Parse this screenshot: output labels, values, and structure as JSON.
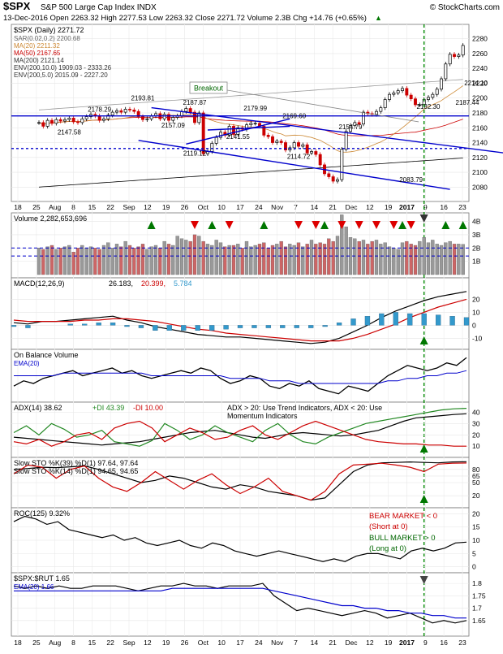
{
  "header": {
    "symbol": "$SPX",
    "name": "S&P 500 Large Cap Index",
    "exchange": "INDX",
    "brand": "© StockCharts.com",
    "date": "13-Dec-2016",
    "open_label": "Open",
    "open": "2263.32",
    "high_label": "High",
    "high": "2277.53",
    "low_label": "Low",
    "low": "2263.32",
    "close_label": "Close",
    "close": "2271.72",
    "volume_label": "Volume",
    "volume": "2.3B",
    "chg_label": "Chg",
    "chg": "+14.76 (+0.65%)",
    "chg_arrow": "▲"
  },
  "colors": {
    "price": "#000000",
    "up": "#000000",
    "down": "#cc0000",
    "channel": "#0000cc",
    "ma20": "#cc8833",
    "ma50": "#cc0000",
    "ma200": "#000000",
    "env": "#999999",
    "sar": "#999999",
    "arrow_up": "#007700",
    "arrow_down": "#dd0000",
    "volume_up": "#999999",
    "volume_down": "#cc6666",
    "macd_hist": "#3399cc",
    "signal": "#cc0000",
    "marker": "#008800",
    "bear": "#cc0000",
    "bull": "#006600"
  },
  "x_axis": {
    "labels": [
      "18",
      "25",
      "Aug",
      "8",
      "15",
      "22",
      "Sep",
      "12",
      "19",
      "26",
      "Oct",
      "10",
      "17",
      "24",
      "Nov",
      "7",
      "14",
      "21",
      "Dec",
      "12",
      "19",
      "2017",
      "9",
      "16",
      "23"
    ]
  },
  "chart_data": [
    {
      "type": "candlestick",
      "panel": "price",
      "title": "$SPX (Daily) 2271.72",
      "legend": [
        "SAR(0.02,0.2) 2200.68",
        "MA(20) 2211.32",
        "MA(50) 2167.65",
        "MA(200) 2121.14",
        "ENV(200,10.0) 1909.03 - 2333.26",
        "ENV(200,5.0) 2015.09 - 2227.20"
      ],
      "ylim": [
        2065,
        2295
      ],
      "yticks": [
        2080,
        2100,
        2120,
        2140,
        2160,
        2180,
        2200,
        2220,
        2240,
        2260,
        2280
      ],
      "close": [
        2167,
        2162,
        2170,
        2166,
        2171,
        2169,
        2171,
        2173,
        2168,
        2167,
        2172,
        2175,
        2178,
        2176,
        2170,
        2172,
        2177,
        2181,
        2183,
        2181,
        2185,
        2184,
        2182,
        2175,
        2171,
        2172,
        2176,
        2179,
        2172,
        2178,
        2170,
        2174,
        2176,
        2182,
        2186,
        2181,
        2167,
        2180,
        2125,
        2128,
        2139,
        2147,
        2154,
        2150,
        2162,
        2151,
        2160,
        2158,
        2164,
        2166,
        2166,
        2162,
        2150,
        2148,
        2140,
        2142,
        2140,
        2130,
        2133,
        2140,
        2135,
        2137,
        2126,
        2128,
        2124,
        2110,
        2098,
        2094,
        2088,
        2090,
        2131,
        2155,
        2163,
        2167,
        2165,
        2181,
        2179,
        2178,
        2182,
        2187,
        2198,
        2205,
        2207,
        2210,
        2213,
        2204,
        2199,
        2191,
        2191,
        2198,
        2201,
        2205,
        2212,
        2226,
        2246,
        2259,
        2256,
        2258,
        2271
      ],
      "annotations": [
        {
          "label": "2178.29",
          "x": 20,
          "y": 2178.3
        },
        {
          "label": "2193.81",
          "x": 30,
          "y": 2193.8
        },
        {
          "label": "2187.87",
          "x": 42,
          "y": 2187.9
        },
        {
          "label": "2179.99",
          "x": 56,
          "y": 2180
        },
        {
          "label": "2169.60",
          "x": 65,
          "y": 2169.6
        },
        {
          "label": "2157.09",
          "x": 37,
          "y": 2157.1
        },
        {
          "label": "2147.58",
          "x": 13,
          "y": 2147.6
        },
        {
          "label": "2141.55",
          "x": 52,
          "y": 2141.6
        },
        {
          "label": "2119.12",
          "x": 42,
          "y": 2119.1
        },
        {
          "label": "2114.72",
          "x": 66,
          "y": 2114.7
        },
        {
          "label": "2154.79",
          "x": 78,
          "y": 2154.8
        },
        {
          "label": "2083.79",
          "x": 92,
          "y": 2083.8
        },
        {
          "label": "2182.30",
          "x": 96,
          "y": 2182.3
        },
        {
          "label": "2187.44",
          "x": 105,
          "y": 2187.4
        },
        {
          "label": "2214.10",
          "x": 107,
          "y": 2214.1
        }
      ],
      "breakout_label": "Breakout",
      "horizontal_lines": [
        2176,
        2132
      ],
      "channel_lines": [
        {
          "from": [
            32,
            2187
          ],
          "to": [
            115,
            2125
          ]
        },
        {
          "from": [
            29,
            2143
          ],
          "to": [
            101,
            2077
          ]
        },
        {
          "from": [
            40,
            2138
          ],
          "to": [
            64,
            2172
          ]
        },
        {
          "from": [
            45,
            2157
          ],
          "to": [
            64,
            2162
          ]
        }
      ]
    },
    {
      "type": "bar",
      "panel": "volume",
      "title": "Volume 2,282,653,696",
      "ylim": [
        0,
        4.4
      ],
      "yticks": [
        1,
        2,
        3,
        4
      ],
      "ytick_labels": [
        "1B",
        "2B",
        "3B",
        "4B"
      ],
      "reference_lines": [
        2.0,
        1.4
      ],
      "values": [
        2.0,
        1.9,
        2.1,
        2.2,
        1.9,
        2.0,
        2.1,
        2.2,
        1.7,
        2.0,
        2.2,
        2.0,
        2.1,
        2.0,
        1.9,
        2.2,
        2.4,
        2.0,
        2.3,
        2.1,
        2.5,
        2.2,
        2.0,
        2.1,
        2.3,
        1.9,
        2.1,
        2.2,
        2.0,
        2.5,
        2.3,
        2.2,
        2.9,
        2.7,
        2.6,
        2.5,
        3.0,
        2.9,
        2.5,
        2.3,
        2.2,
        2.6,
        2.4,
        2.1,
        2.2,
        2.2,
        2.3,
        2.0,
        2.5,
        2.1,
        2.2,
        2.3,
        2.4,
        2.0,
        2.2,
        2.3,
        2.5,
        2.1,
        2.3,
        2.2,
        2.4,
        2.1,
        2.3,
        2.6,
        2.3,
        2.4,
        2.3,
        2.7,
        2.5,
        2.9,
        4.5,
        3.6,
        2.8,
        2.7,
        2.5,
        2.6,
        2.3,
        2.5,
        2.6,
        2.3,
        2.4,
        2.1,
        2.0,
        1.9,
        2.4,
        2.5,
        2.3,
        2.2,
        2.5,
        2.8,
        2.4,
        2.6,
        2.3,
        2.2,
        2.4,
        2.5,
        2.3,
        2.3,
        2.28
      ]
    },
    {
      "type": "line",
      "panel": "macd",
      "title": "MACD(12,26,9)",
      "values_text": [
        "26.183",
        "20.399",
        "5.784"
      ],
      "ylim": [
        -16,
        34
      ],
      "yticks": [
        -10,
        0,
        10,
        20
      ],
      "series": [
        {
          "name": "MACD",
          "values": [
            2,
            1,
            3,
            3,
            4,
            5,
            6,
            7,
            4,
            2,
            -1,
            -3,
            -5,
            -7,
            -8,
            -9,
            -9,
            -10,
            -11,
            -12,
            -13,
            -14,
            -13,
            -10,
            -5,
            0,
            6,
            11,
            15,
            19,
            22,
            24,
            26
          ]
        },
        {
          "name": "Signal",
          "values": [
            4,
            3,
            3,
            3,
            3,
            4,
            4,
            5,
            5,
            4,
            3,
            1,
            -1,
            -3,
            -4,
            -6,
            -7,
            -8,
            -9,
            -10,
            -11,
            -12,
            -12,
            -12,
            -10,
            -7,
            -3,
            1,
            6,
            10,
            14,
            17,
            20
          ]
        }
      ],
      "histogram": [
        -1,
        -2,
        0,
        0,
        1,
        1,
        2,
        2,
        -1,
        -2,
        -4,
        -4,
        -4,
        -4,
        -4,
        -3,
        -2,
        -2,
        -2,
        -2,
        -2,
        -2,
        -1,
        2,
        5,
        7,
        9,
        10,
        9,
        9,
        8,
        7,
        6
      ]
    },
    {
      "type": "line",
      "panel": "obv",
      "title": "On Balance Volume",
      "legend": [
        "EMA(20)"
      ],
      "series": [
        {
          "name": "OBV",
          "values": [
            5,
            7,
            6,
            8,
            9,
            10,
            11,
            9,
            10,
            11,
            12,
            10,
            11,
            9,
            8,
            9,
            10,
            11,
            10,
            12,
            11,
            8,
            6,
            7,
            9,
            8,
            5,
            4,
            6,
            5,
            7,
            4,
            3,
            2,
            5,
            4,
            3,
            6,
            9,
            11,
            13,
            12,
            11,
            12,
            14,
            13,
            16
          ]
        },
        {
          "name": "EMA(20)",
          "values": [
            9,
            9,
            9,
            9,
            9,
            10,
            10,
            10,
            10,
            10,
            10,
            10,
            10,
            10,
            9,
            9,
            9,
            9,
            9,
            9,
            9,
            9,
            8,
            8,
            8,
            8,
            7,
            7,
            7,
            6,
            6,
            6,
            6,
            6,
            6,
            6,
            6,
            6,
            7,
            7,
            8,
            8,
            9,
            9,
            10,
            10,
            11
          ]
        }
      ]
    },
    {
      "type": "line",
      "panel": "adx",
      "title": "ADX(14)",
      "values_text": [
        "38.62",
        "+DI 43.39",
        "-DI 10.00"
      ],
      "note": "ADX > 20: Use Trend Indicators, ADX < 20: Use Momentum Indicators",
      "ylim": [
        3,
        46
      ],
      "yticks": [
        10,
        20,
        30,
        40
      ],
      "series": [
        {
          "name": "ADX(14)",
          "values": [
            18,
            17,
            16,
            15,
            14,
            13,
            12,
            11,
            12,
            13,
            14,
            16,
            18,
            20,
            22,
            23,
            24,
            22,
            20,
            18,
            17,
            19,
            21,
            22,
            21,
            20,
            19,
            20,
            22,
            24,
            28,
            32,
            35,
            36,
            37,
            38,
            38.6
          ]
        },
        {
          "name": "+DI",
          "values": [
            22,
            28,
            20,
            30,
            25,
            18,
            20,
            24,
            14,
            12,
            10,
            15,
            30,
            24,
            16,
            20,
            28,
            22,
            18,
            14,
            24,
            30,
            20,
            14,
            12,
            18,
            22,
            26,
            30,
            32,
            34,
            36,
            38,
            40,
            42,
            43,
            43.4
          ]
        },
        {
          "name": "-DI",
          "values": [
            14,
            12,
            16,
            10,
            14,
            20,
            22,
            16,
            26,
            30,
            32,
            26,
            14,
            20,
            26,
            22,
            16,
            18,
            24,
            28,
            20,
            16,
            22,
            28,
            32,
            28,
            24,
            20,
            16,
            14,
            13,
            12,
            12,
            11,
            11,
            10,
            10
          ]
        }
      ]
    },
    {
      "type": "line",
      "panel": "stochastics",
      "title": "Slow STO %K(39) %D(1) 97.64, 97.64",
      "title2": "Slow STO %K(14) %D(1) 94.65, 94.65",
      "ylim": [
        0,
        100
      ],
      "yticks": [
        20,
        50,
        65,
        80
      ],
      "series": [
        {
          "name": "Slow STO %K(39)",
          "values": [
            80,
            82,
            85,
            84,
            86,
            88,
            80,
            70,
            60,
            50,
            55,
            65,
            60,
            50,
            40,
            35,
            45,
            40,
            30,
            25,
            20,
            10,
            15,
            45,
            75,
            90,
            95,
            96,
            97,
            96,
            95,
            97,
            97.6
          ]
        },
        {
          "name": "Slow STO %K(14)",
          "values": [
            70,
            90,
            85,
            60,
            80,
            88,
            60,
            40,
            30,
            50,
            75,
            55,
            35,
            55,
            70,
            45,
            25,
            40,
            60,
            30,
            20,
            10,
            30,
            70,
            90,
            92,
            94,
            90,
            85,
            75,
            92,
            94,
            94.6
          ]
        }
      ]
    },
    {
      "type": "line",
      "panel": "roc",
      "title": "ROC(125) 9.32%",
      "annotations": [
        "BEAR MARKET < 0",
        "(Short at 0)",
        "BULL MARKET > 0",
        "(Long at 0)"
      ],
      "ylim": [
        -1,
        21
      ],
      "yticks": [
        0,
        5,
        10,
        15,
        20
      ],
      "series": [
        {
          "name": "ROC(125)",
          "values": [
            17,
            19,
            18,
            16,
            17,
            14,
            13,
            12,
            11,
            12,
            10,
            11,
            9,
            8,
            9,
            10,
            8,
            7,
            9,
            8,
            6,
            5,
            4,
            5,
            6,
            5,
            4,
            3,
            2,
            3,
            2,
            4,
            5,
            5,
            4,
            3,
            6,
            7,
            6,
            7,
            9,
            9.3
          ]
        }
      ]
    },
    {
      "type": "line",
      "panel": "ratio",
      "title": "$SPX:$RUT 1.65",
      "legend": [
        "EMA(20) 1.66"
      ],
      "ylim": [
        1.6,
        1.83
      ],
      "yticks": [
        1.65,
        1.7,
        1.75,
        1.8
      ],
      "series": [
        {
          "name": "$SPX:$RUT",
          "values": [
            1.79,
            1.78,
            1.79,
            1.78,
            1.79,
            1.78,
            1.78,
            1.79,
            1.79,
            1.79,
            1.78,
            1.77,
            1.78,
            1.79,
            1.79,
            1.8,
            1.79,
            1.79,
            1.78,
            1.79,
            1.79,
            1.79,
            1.8,
            1.75,
            1.72,
            1.69,
            1.7,
            1.69,
            1.68,
            1.67,
            1.68,
            1.69,
            1.68,
            1.66,
            1.67,
            1.68,
            1.66,
            1.64,
            1.65,
            1.64,
            1.65
          ]
        },
        {
          "name": "EMA(20)",
          "values": [
            1.77,
            1.77,
            1.77,
            1.77,
            1.77,
            1.77,
            1.77,
            1.77,
            1.77,
            1.77,
            1.77,
            1.77,
            1.77,
            1.77,
            1.78,
            1.78,
            1.78,
            1.78,
            1.78,
            1.78,
            1.78,
            1.78,
            1.78,
            1.77,
            1.76,
            1.75,
            1.74,
            1.73,
            1.72,
            1.71,
            1.71,
            1.7,
            1.7,
            1.69,
            1.69,
            1.68,
            1.68,
            1.67,
            1.67,
            1.66,
            1.66
          ]
        }
      ]
    }
  ]
}
